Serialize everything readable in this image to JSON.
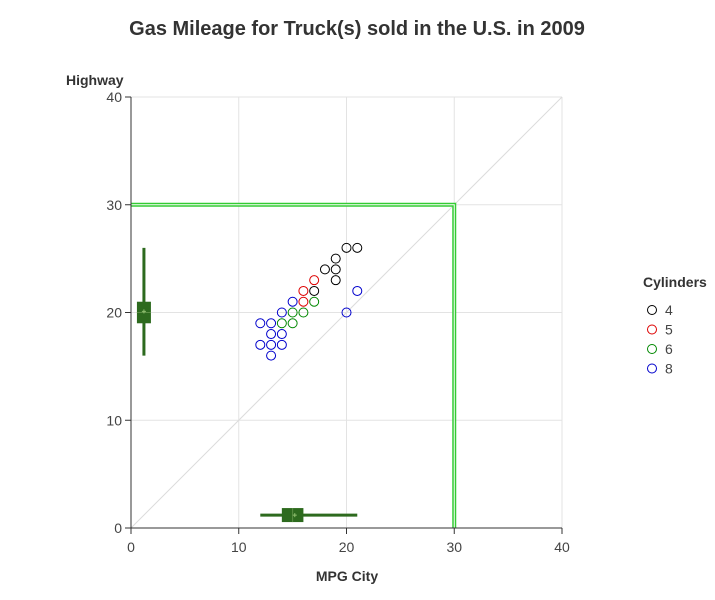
{
  "chart_data": {
    "type": "scatter",
    "title": "Gas Mileage for Truck(s) sold in the U.S. in 2009",
    "xlabel": "MPG City",
    "ylabel": "Highway",
    "xlim": [
      0,
      40
    ],
    "ylim": [
      0,
      40
    ],
    "x_ticks": [
      "0",
      "10",
      "20",
      "30",
      "40"
    ],
    "y_ticks": [
      "0",
      "10",
      "20",
      "30",
      "40"
    ],
    "grid": true,
    "reference_line": "y = x",
    "reference_lines": {
      "x": 30,
      "y": 30,
      "color": "#33cc33"
    },
    "legend": {
      "title": "Cylinders",
      "placement": "right"
    },
    "series": [
      {
        "name": "4",
        "color": "#000000",
        "points": [
          [
            17,
            22
          ],
          [
            18,
            24
          ],
          [
            19,
            23
          ],
          [
            19,
            24
          ],
          [
            19,
            25
          ],
          [
            20,
            26
          ],
          [
            21,
            26
          ]
        ]
      },
      {
        "name": "5",
        "color": "#dd0000",
        "points": [
          [
            16,
            21
          ],
          [
            16,
            22
          ],
          [
            17,
            23
          ]
        ]
      },
      {
        "name": "6",
        "color": "#008800",
        "points": [
          [
            14,
            19
          ],
          [
            15,
            19
          ],
          [
            15,
            20
          ],
          [
            16,
            20
          ],
          [
            17,
            21
          ]
        ]
      },
      {
        "name": "8",
        "color": "#0000cc",
        "points": [
          [
            12,
            17
          ],
          [
            12,
            19
          ],
          [
            13,
            16
          ],
          [
            13,
            17
          ],
          [
            13,
            18
          ],
          [
            13,
            19
          ],
          [
            14,
            17
          ],
          [
            14,
            18
          ],
          [
            14,
            20
          ],
          [
            15,
            21
          ],
          [
            20,
            20
          ],
          [
            21,
            22
          ]
        ]
      }
    ],
    "boxplot_x": {
      "min": 12,
      "q1": 14,
      "median": 15,
      "q3": 16,
      "max": 21,
      "mean": 15.2
    },
    "boxplot_y": {
      "min": 16,
      "q1": 19,
      "median": 20,
      "q3": 21,
      "max": 26,
      "mean": 20.1
    },
    "boxplot_color": "#2d6a1e"
  }
}
